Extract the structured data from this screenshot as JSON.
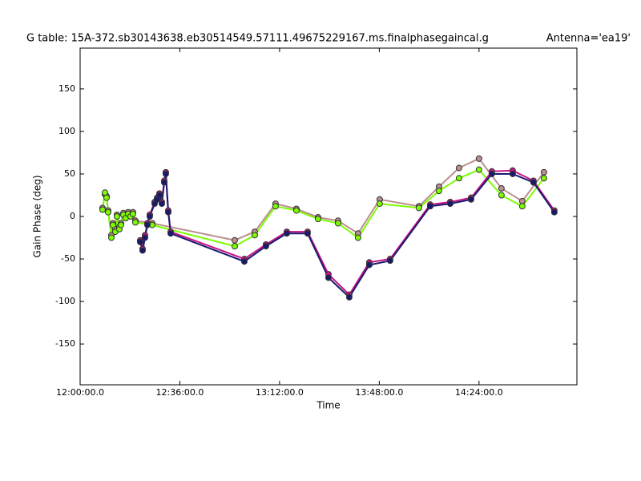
{
  "chart_data": {
    "type": "line",
    "title": "G table: 15A-372.sb30143638.eb30514549.57111.49675229167.ms.finalphasegaincal.g",
    "antenna_label": "Antenna='ea19'",
    "x_label": "Time",
    "y_label": "Gain Phase (deg)",
    "xlim": [
      43200,
      53960
    ],
    "ylim": [
      -198,
      198
    ],
    "xticks": [
      {
        "value": 43200,
        "label": "12:00:00.0"
      },
      {
        "value": 45360,
        "label": "12:36:00.0"
      },
      {
        "value": 47520,
        "label": "13:12:00.0"
      },
      {
        "value": 49680,
        "label": "13:48:00.0"
      },
      {
        "value": 51840,
        "label": "14:24:00.0"
      }
    ],
    "yticks": [
      -150,
      -100,
      -50,
      0,
      50,
      100,
      150
    ],
    "grid": false,
    "series": [
      {
        "color": "#bc8f8f",
        "x": [
          43686,
          43738,
          43773,
          43807,
          43877,
          43911,
          43963,
          43998,
          44050,
          44085,
          44137,
          44189,
          44241,
          44293,
          44345,
          44397,
          44762,
          46549,
          46982,
          47433,
          47885,
          48353,
          48787,
          49220,
          49689,
          50539,
          50973,
          51407,
          51840,
          52326,
          52777,
          53246
        ],
        "values": [
          10,
          26,
          24,
          7,
          -22,
          -8,
          -15,
          2,
          -12,
          -8,
          4,
          0,
          5,
          2,
          5,
          -5,
          -8,
          -28,
          -18,
          15,
          9,
          -1,
          -5,
          -20,
          20,
          12,
          35,
          57,
          68,
          33,
          18,
          52
        ]
      },
      {
        "color": "#7cfc00",
        "x": [
          43686,
          43738,
          43773,
          43807,
          43877,
          43911,
          43963,
          43998,
          44050,
          44085,
          44137,
          44189,
          44241,
          44293,
          44345,
          44397,
          44762,
          46549,
          46982,
          47433,
          47885,
          48353,
          48787,
          49220,
          49689,
          50539,
          50973,
          51407,
          51840,
          52326,
          52777,
          53246
        ],
        "values": [
          8,
          28,
          22,
          5,
          -25,
          -10,
          -18,
          0,
          -15,
          -10,
          2,
          -2,
          3,
          0,
          3,
          -7,
          -10,
          -35,
          -22,
          12,
          7,
          -3,
          -8,
          -25,
          15,
          10,
          30,
          45,
          55,
          25,
          12,
          45
        ]
      },
      {
        "color": "#c71585",
        "x": [
          44501,
          44553,
          44605,
          44657,
          44709,
          44814,
          44866,
          44918,
          44970,
          45022,
          45056,
          45109,
          45161,
          46757,
          47225,
          47676,
          48127,
          48579,
          49030,
          49463,
          49914,
          50782,
          51216,
          51667,
          52118,
          52569,
          53020,
          53471
        ],
        "values": [
          -28,
          -38,
          -22,
          -8,
          2,
          17,
          22,
          27,
          17,
          42,
          52,
          7,
          -18,
          -50,
          -33,
          -18,
          -18,
          -68,
          -92,
          -54,
          -50,
          14,
          17,
          22,
          53,
          54,
          42,
          7
        ]
      },
      {
        "color": "#191970",
        "x": [
          44501,
          44553,
          44605,
          44657,
          44709,
          44814,
          44866,
          44918,
          44970,
          45022,
          45056,
          45109,
          45161,
          46757,
          47225,
          47676,
          48127,
          48579,
          49030,
          49463,
          49914,
          50782,
          51216,
          51667,
          52118,
          52569,
          53020,
          53471
        ],
        "values": [
          -30,
          -40,
          -25,
          -10,
          0,
          15,
          20,
          25,
          15,
          40,
          50,
          5,
          -20,
          -53,
          -35,
          -20,
          -20,
          -72,
          -95,
          -57,
          -52,
          12,
          15,
          20,
          50,
          50,
          40,
          5
        ]
      }
    ]
  }
}
